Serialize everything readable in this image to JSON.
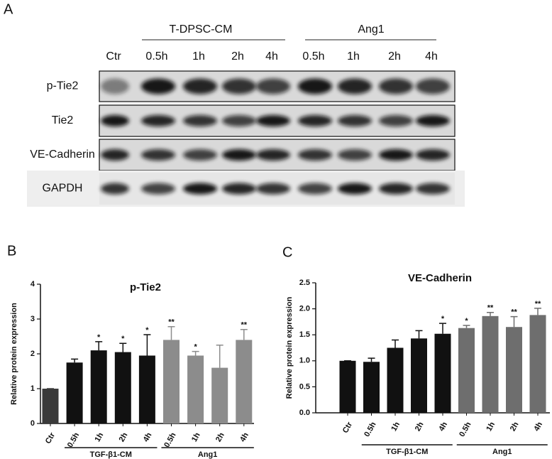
{
  "panel_letters": [
    "A",
    "B",
    "C"
  ],
  "blot": {
    "groups": [
      "T-DPSC-CM",
      "Ang1"
    ],
    "lanes": [
      "Ctr",
      "0.5h",
      "1h",
      "2h",
      "4h",
      "0.5h",
      "1h",
      "2h",
      "4h"
    ],
    "rows": [
      "p-Tie2",
      "Tie2",
      "VE-Cadherin",
      "GAPDH"
    ]
  },
  "chart_data": [
    {
      "type": "bar",
      "title": "p-Tie2",
      "y_label": "Relative protein expression",
      "categories": [
        "Ctr",
        "0.5h",
        "1h",
        "2h",
        "4h",
        "0.5h",
        "1h",
        "2h",
        "4h"
      ],
      "values": [
        1.0,
        1.75,
        2.1,
        2.05,
        1.95,
        2.4,
        1.95,
        1.6,
        2.4
      ],
      "errors": [
        0,
        0.1,
        0.25,
        0.25,
        0.6,
        0.38,
        0.12,
        0.65,
        0.3
      ],
      "significance": [
        null,
        null,
        "*",
        "*",
        "*",
        "**",
        "*",
        null,
        "**"
      ],
      "colors": [
        "#3a3a3a",
        "#111111",
        "#111111",
        "#111111",
        "#111111",
        "#8c8c8c",
        "#8c8c8c",
        "#8c8c8c",
        "#8c8c8c"
      ],
      "groups": [
        {
          "label": "TGF-β1-CM",
          "from": 1,
          "to": 4
        },
        {
          "label": "Ang1",
          "from": 5,
          "to": 8
        }
      ],
      "ylim": [
        0,
        4
      ],
      "yticks": [
        0,
        1,
        2,
        3,
        4
      ]
    },
    {
      "type": "bar",
      "title": "VE-Cadherin",
      "y_label": "Relative protein expression",
      "categories": [
        "Ctr",
        "0.5h",
        "1h",
        "2h",
        "4h",
        "0.5h",
        "1h",
        "2h",
        "4h"
      ],
      "values": [
        1.0,
        0.98,
        1.25,
        1.43,
        1.52,
        1.63,
        1.86,
        1.65,
        1.88
      ],
      "errors": [
        0,
        0.07,
        0.15,
        0.15,
        0.2,
        0.05,
        0.07,
        0.2,
        0.13
      ],
      "significance": [
        null,
        null,
        null,
        null,
        "*",
        "*",
        "**",
        "**",
        "**"
      ],
      "colors": [
        "#111111",
        "#111111",
        "#111111",
        "#111111",
        "#111111",
        "#6e6e6e",
        "#6e6e6e",
        "#6e6e6e",
        "#6e6e6e"
      ],
      "groups": [
        {
          "label": "TGF-β1-CM",
          "from": 1,
          "to": 4
        },
        {
          "label": "Ang1",
          "from": 5,
          "to": 8
        }
      ],
      "ylim": [
        0,
        2.5
      ],
      "yticks": [
        {
          "value": 0,
          "label": "0.0"
        },
        0.5,
        {
          "value": 1,
          "label": "1.0"
        },
        1.5,
        {
          "value": 2,
          "label": "2.0"
        },
        2.5
      ]
    }
  ]
}
